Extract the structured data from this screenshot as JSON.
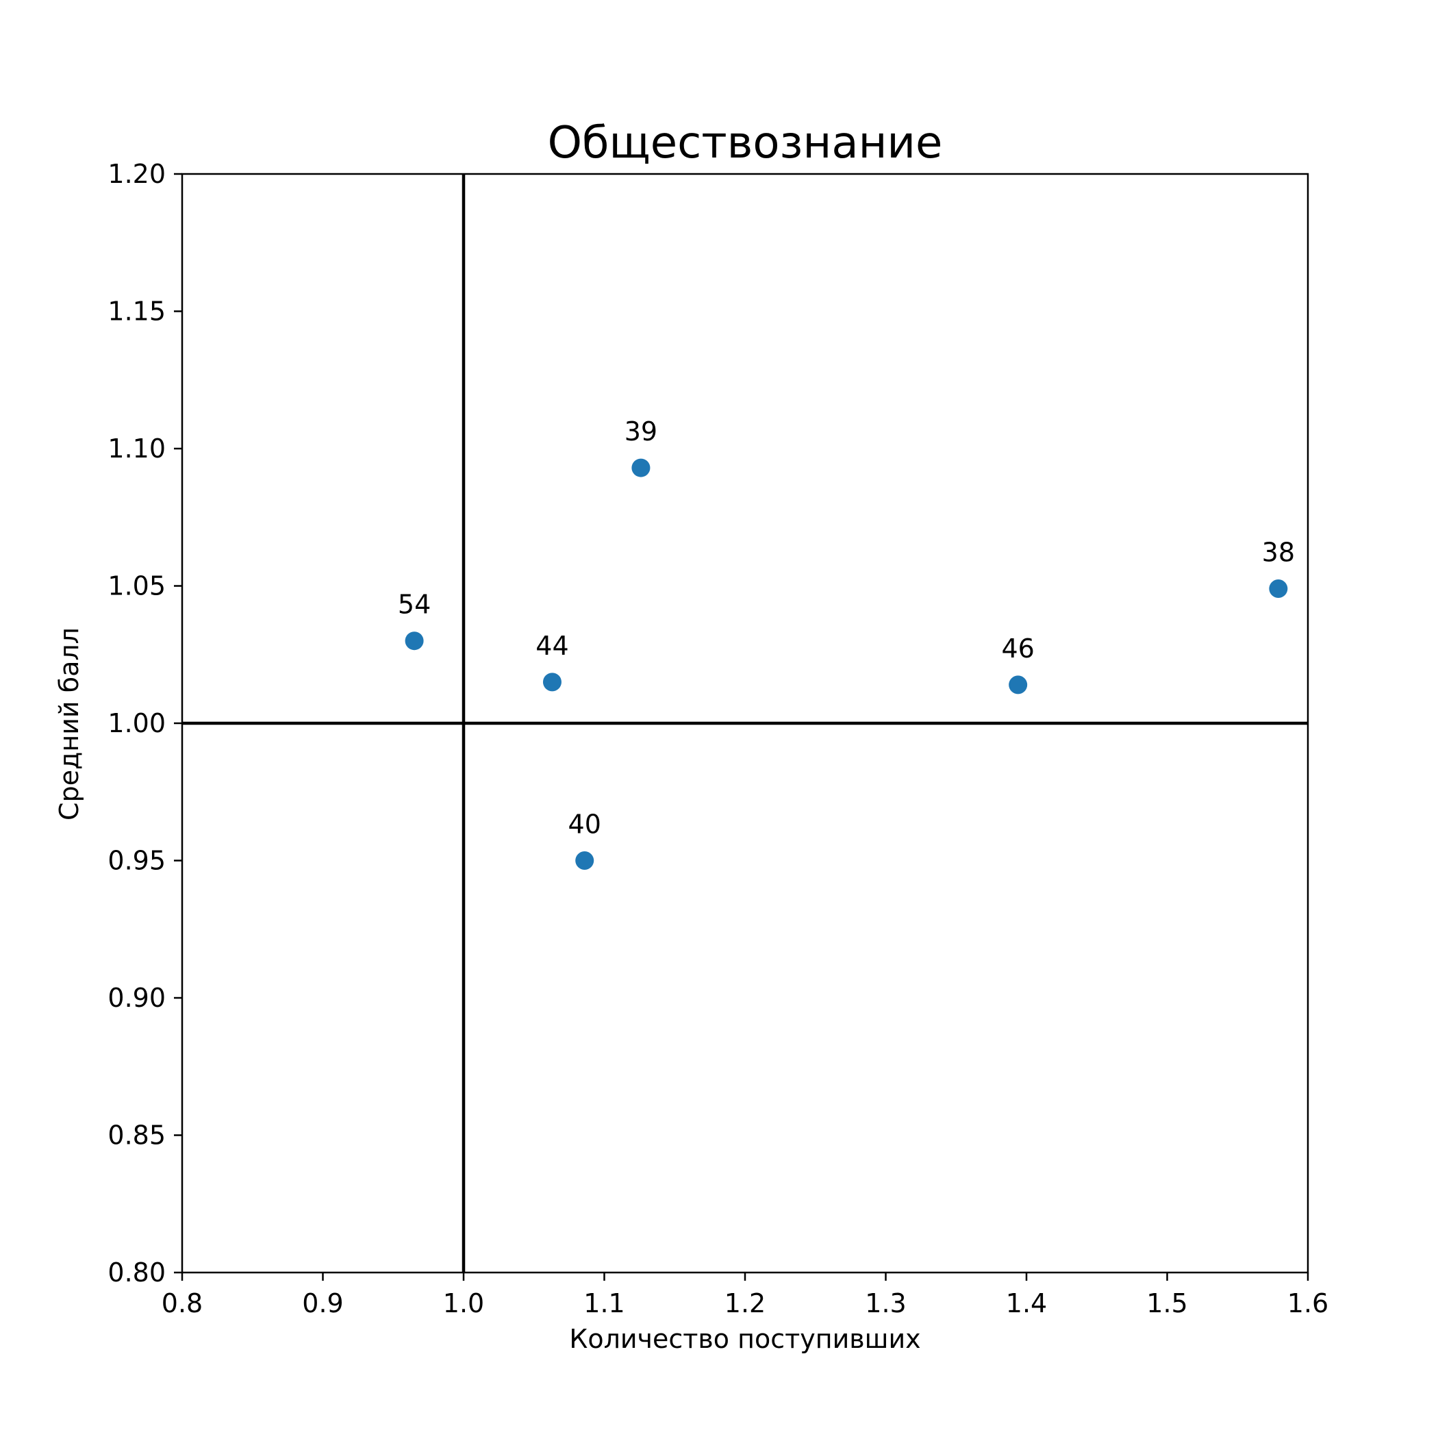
{
  "chart_data": {
    "type": "scatter",
    "title": "Обществознание",
    "xlabel": "Количество поступивших",
    "ylabel": "Средний балл",
    "xlim": [
      0.8,
      1.6
    ],
    "ylim": [
      0.8,
      1.2
    ],
    "xticks": [
      0.8,
      0.9,
      1.0,
      1.1,
      1.2,
      1.3,
      1.4,
      1.5,
      1.6
    ],
    "xtick_labels": [
      "0.8",
      "0.9",
      "1.0",
      "1.1",
      "1.2",
      "1.3",
      "1.4",
      "1.5",
      "1.6"
    ],
    "yticks": [
      0.8,
      0.85,
      0.9,
      0.95,
      1.0,
      1.05,
      1.1,
      1.15,
      1.2
    ],
    "ytick_labels": [
      "0.80",
      "0.85",
      "0.90",
      "0.95",
      "1.00",
      "1.05",
      "1.10",
      "1.15",
      "1.20"
    ],
    "reference_lines": {
      "x": 1.0,
      "y": 1.0
    },
    "grid": false,
    "marker_color": "#1f77b4",
    "points": [
      {
        "label": "54",
        "x": 0.965,
        "y": 1.03
      },
      {
        "label": "44",
        "x": 1.063,
        "y": 1.015
      },
      {
        "label": "39",
        "x": 1.126,
        "y": 1.093
      },
      {
        "label": "40",
        "x": 1.086,
        "y": 0.95
      },
      {
        "label": "46",
        "x": 1.394,
        "y": 1.014
      },
      {
        "label": "38",
        "x": 1.579,
        "y": 1.049
      }
    ]
  }
}
